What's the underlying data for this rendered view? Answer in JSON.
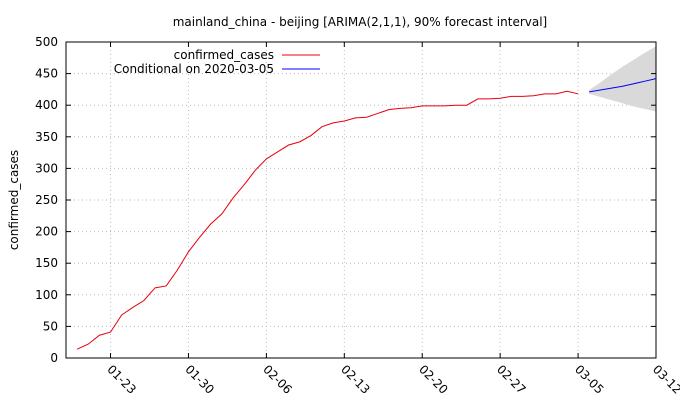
{
  "chart_data": {
    "type": "line",
    "title": "mainland_china - beijing [ARIMA(2,1,1), 90% forecast interval]",
    "xlabel": "",
    "ylabel": "confirmed_cases",
    "ylim": [
      0,
      500
    ],
    "yticks": [
      0,
      50,
      100,
      150,
      200,
      250,
      300,
      350,
      400,
      450,
      500
    ],
    "xlim": [
      "2020-01-19",
      "2020-03-12"
    ],
    "xticks": [
      "2020-01-23",
      "2020-01-30",
      "2020-02-06",
      "2020-02-13",
      "2020-02-20",
      "2020-02-27",
      "2020-03-05",
      "2020-03-12"
    ],
    "xtick_labels": [
      "01-23",
      "01-30",
      "02-06",
      "02-13",
      "02-20",
      "02-27",
      "03-05",
      "03-12"
    ],
    "grid": true,
    "legend_position": "top-left",
    "series": [
      {
        "name": "confirmed_cases",
        "color": "#e8000b",
        "x": [
          "2020-01-20",
          "2020-01-21",
          "2020-01-22",
          "2020-01-23",
          "2020-01-24",
          "2020-01-25",
          "2020-01-26",
          "2020-01-27",
          "2020-01-28",
          "2020-01-29",
          "2020-01-30",
          "2020-01-31",
          "2020-02-01",
          "2020-02-02",
          "2020-02-03",
          "2020-02-04",
          "2020-02-05",
          "2020-02-06",
          "2020-02-07",
          "2020-02-08",
          "2020-02-09",
          "2020-02-10",
          "2020-02-11",
          "2020-02-12",
          "2020-02-13",
          "2020-02-14",
          "2020-02-15",
          "2020-02-16",
          "2020-02-17",
          "2020-02-18",
          "2020-02-19",
          "2020-02-20",
          "2020-02-21",
          "2020-02-22",
          "2020-02-23",
          "2020-02-24",
          "2020-02-25",
          "2020-02-26",
          "2020-02-27",
          "2020-02-28",
          "2020-02-29",
          "2020-03-01",
          "2020-03-02",
          "2020-03-03",
          "2020-03-04",
          "2020-03-05"
        ],
        "values": [
          14,
          22,
          36,
          41,
          68,
          80,
          91,
          111,
          114,
          139,
          168,
          191,
          212,
          228,
          253,
          274,
          297,
          315,
          326,
          337,
          342,
          352,
          366,
          372,
          375,
          380,
          381,
          387,
          393,
          395,
          396,
          399,
          399,
          399,
          400,
          400,
          410,
          410,
          411,
          414,
          414,
          415,
          418,
          418,
          422,
          418
        ]
      },
      {
        "name": "Conditional on 2020-03-05",
        "color": "#0000ff",
        "x": [
          "2020-03-06",
          "2020-03-07",
          "2020-03-08",
          "2020-03-09",
          "2020-03-10",
          "2020-03-11",
          "2020-03-12"
        ],
        "values": [
          421,
          424,
          427,
          430,
          434,
          438,
          442
        ],
        "interval_90": {
          "lower": [
            418,
            413,
            408,
            403,
            398,
            394,
            390
          ],
          "upper": [
            424,
            436,
            449,
            461,
            472,
            483,
            493
          ],
          "color": "#d9d9d9"
        }
      }
    ]
  }
}
